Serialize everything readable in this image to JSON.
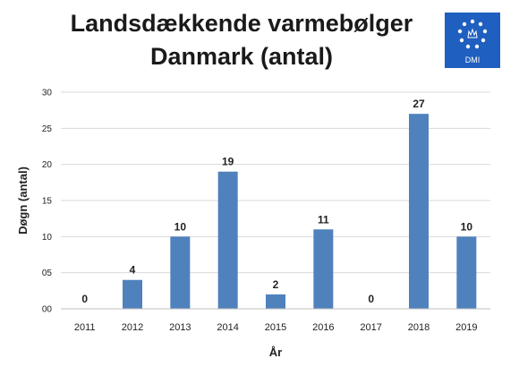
{
  "header": {
    "title_line1": "Landsdækkende varmebølger",
    "title_line2": "Danmark (antal)"
  },
  "logo": {
    "text": "DMI",
    "color": "#1f5fbf"
  },
  "chart_data": {
    "type": "bar",
    "categories": [
      "2011",
      "2012",
      "2013",
      "2014",
      "2015",
      "2016",
      "2017",
      "2018",
      "2019"
    ],
    "values": [
      0,
      4,
      10,
      19,
      2,
      11,
      0,
      27,
      10
    ],
    "data_labels": [
      "0",
      "4",
      "10",
      "19",
      "2",
      "11",
      "0",
      "27",
      "10"
    ],
    "ylim": [
      0,
      30
    ],
    "y_ticks": [
      0,
      5,
      10,
      15,
      20,
      25,
      30
    ],
    "y_tick_labels": [
      "00",
      "05",
      "10",
      "15",
      "20",
      "25",
      "30"
    ],
    "xlabel": "År",
    "ylabel": "Døgn (antal)",
    "bar_color": "#4f81bd",
    "grid": true
  }
}
